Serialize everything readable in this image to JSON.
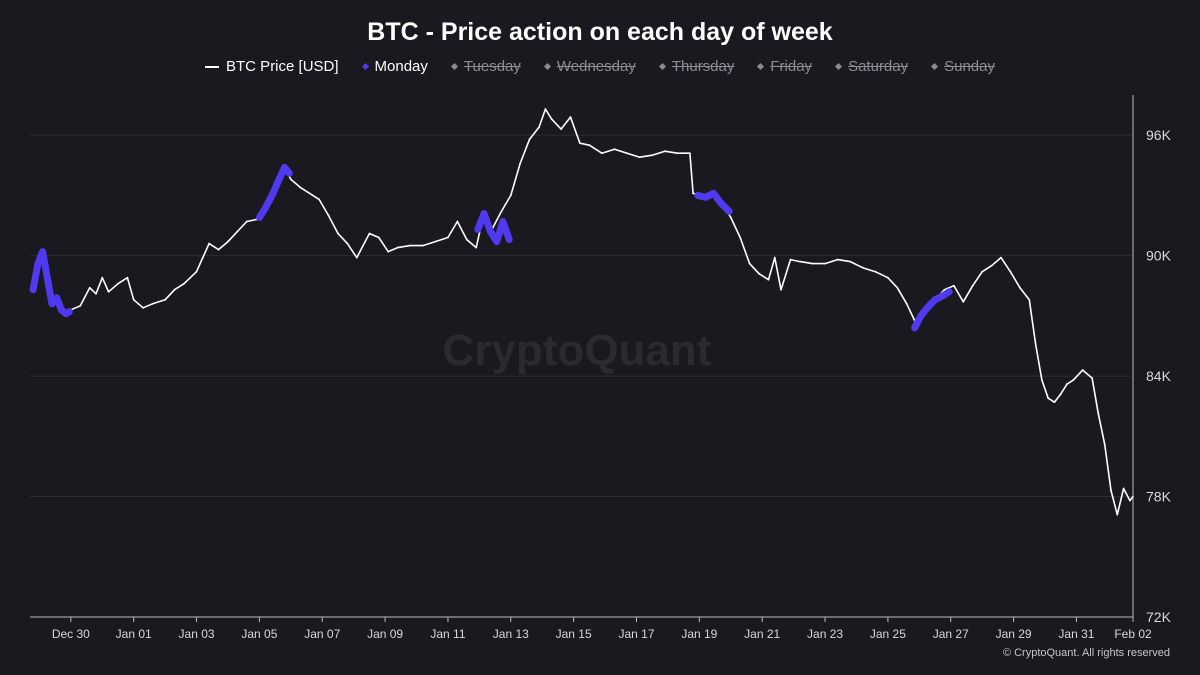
{
  "title": "BTC - Price action on each day of week",
  "legend": [
    {
      "label": "BTC Price [USD]",
      "kind": "line",
      "state": "on",
      "color": "#ffffff"
    },
    {
      "label": "Monday",
      "kind": "dot",
      "state": "on",
      "color": "#4f3af0"
    },
    {
      "label": "Tuesday",
      "kind": "dot",
      "state": "off"
    },
    {
      "label": "Wednesday",
      "kind": "dot",
      "state": "off"
    },
    {
      "label": "Thursday",
      "kind": "dot",
      "state": "off"
    },
    {
      "label": "Friday",
      "kind": "dot",
      "state": "off"
    },
    {
      "label": "Saturday",
      "kind": "dot",
      "state": "off"
    },
    {
      "label": "Sunday",
      "kind": "dot",
      "state": "off"
    }
  ],
  "watermark": "CryptoQuant",
  "footer": "© CryptoQuant. All rights reserved",
  "colors": {
    "background": "#1a191f",
    "price_line": "#ffffff",
    "monday": "#4f3af0",
    "grid": "#2e2d34",
    "axis_text": "#d8d7dd",
    "watermark": "#2b2a31"
  },
  "chart_data": {
    "type": "line",
    "xlim": [
      -1.3,
      33.8
    ],
    "ylim": [
      72000,
      98000
    ],
    "y_axis_position": "right",
    "x_tick_labels": [
      {
        "day": 0,
        "label": "Dec 30"
      },
      {
        "day": 2,
        "label": "Jan 01"
      },
      {
        "day": 4,
        "label": "Jan 03"
      },
      {
        "day": 6,
        "label": "Jan 05"
      },
      {
        "day": 8,
        "label": "Jan 07"
      },
      {
        "day": 10,
        "label": "Jan 09"
      },
      {
        "day": 12,
        "label": "Jan 11"
      },
      {
        "day": 14,
        "label": "Jan 13"
      },
      {
        "day": 16,
        "label": "Jan 15"
      },
      {
        "day": 18,
        "label": "Jan 17"
      },
      {
        "day": 20,
        "label": "Jan 19"
      },
      {
        "day": 22,
        "label": "Jan 21"
      },
      {
        "day": 24,
        "label": "Jan 23"
      },
      {
        "day": 26,
        "label": "Jan 25"
      },
      {
        "day": 28,
        "label": "Jan 27"
      },
      {
        "day": 30,
        "label": "Jan 29"
      },
      {
        "day": 32,
        "label": "Jan 31"
      },
      {
        "day": 33.8,
        "label": "Feb 02"
      }
    ],
    "y_ticks": [
      72000,
      78000,
      84000,
      90000,
      96000
    ],
    "y_tick_labels": [
      "72K",
      "78K",
      "84K",
      "90K",
      "96K"
    ],
    "grid": "horizontal",
    "series": [
      {
        "name": "BTC Price [USD]",
        "color": "#ffffff",
        "points": [
          [
            -1.2,
            88300
          ],
          [
            -1.05,
            89600
          ],
          [
            -0.9,
            90200
          ],
          [
            -0.75,
            88900
          ],
          [
            -0.6,
            87600
          ],
          [
            -0.45,
            87900
          ],
          [
            -0.3,
            87300
          ],
          [
            -0.15,
            87100
          ],
          [
            0,
            87300
          ],
          [
            0.3,
            87500
          ],
          [
            0.6,
            88400
          ],
          [
            0.8,
            88100
          ],
          [
            1.0,
            88900
          ],
          [
            1.2,
            88200
          ],
          [
            1.5,
            88600
          ],
          [
            1.8,
            88900
          ],
          [
            2.0,
            87800
          ],
          [
            2.3,
            87400
          ],
          [
            2.6,
            87600
          ],
          [
            3.0,
            87800
          ],
          [
            3.3,
            88300
          ],
          [
            3.6,
            88600
          ],
          [
            4.0,
            89200
          ],
          [
            4.2,
            89900
          ],
          [
            4.4,
            90600
          ],
          [
            4.7,
            90300
          ],
          [
            5.0,
            90700
          ],
          [
            5.3,
            91200
          ],
          [
            5.6,
            91700
          ],
          [
            5.9,
            91800
          ],
          [
            6.2,
            92400
          ],
          [
            6.5,
            93500
          ],
          [
            6.8,
            94400
          ],
          [
            7.0,
            93800
          ],
          [
            7.3,
            93400
          ],
          [
            7.6,
            93100
          ],
          [
            7.9,
            92800
          ],
          [
            8.2,
            92000
          ],
          [
            8.5,
            91100
          ],
          [
            8.8,
            90600
          ],
          [
            9.1,
            89900
          ],
          [
            9.5,
            91100
          ],
          [
            9.8,
            90900
          ],
          [
            10.1,
            90200
          ],
          [
            10.4,
            90400
          ],
          [
            10.8,
            90500
          ],
          [
            11.2,
            90500
          ],
          [
            11.6,
            90700
          ],
          [
            12.0,
            90900
          ],
          [
            12.3,
            91700
          ],
          [
            12.6,
            90800
          ],
          [
            12.9,
            90400
          ],
          [
            13.1,
            91800
          ],
          [
            13.4,
            91300
          ],
          [
            13.7,
            92200
          ],
          [
            14.0,
            93000
          ],
          [
            14.3,
            94600
          ],
          [
            14.6,
            95800
          ],
          [
            14.9,
            96400
          ],
          [
            15.1,
            97300
          ],
          [
            15.3,
            96800
          ],
          [
            15.6,
            96300
          ],
          [
            15.9,
            96900
          ],
          [
            16.2,
            95600
          ],
          [
            16.5,
            95500
          ],
          [
            16.9,
            95100
          ],
          [
            17.3,
            95300
          ],
          [
            17.7,
            95100
          ],
          [
            18.1,
            94900
          ],
          [
            18.5,
            95000
          ],
          [
            18.9,
            95200
          ],
          [
            19.3,
            95100
          ],
          [
            19.7,
            95100
          ],
          [
            19.8,
            93100
          ],
          [
            20.2,
            93000
          ],
          [
            20.6,
            92900
          ],
          [
            21.0,
            91900
          ],
          [
            21.3,
            90900
          ],
          [
            21.6,
            89600
          ],
          [
            21.9,
            89100
          ],
          [
            22.2,
            88800
          ],
          [
            22.4,
            89900
          ],
          [
            22.6,
            88300
          ],
          [
            22.9,
            89800
          ],
          [
            23.2,
            89700
          ],
          [
            23.6,
            89600
          ],
          [
            24.0,
            89600
          ],
          [
            24.4,
            89800
          ],
          [
            24.8,
            89700
          ],
          [
            25.2,
            89400
          ],
          [
            25.6,
            89200
          ],
          [
            26.0,
            88900
          ],
          [
            26.3,
            88400
          ],
          [
            26.6,
            87600
          ],
          [
            26.9,
            86600
          ],
          [
            27.2,
            87300
          ],
          [
            27.5,
            87800
          ],
          [
            27.8,
            88300
          ],
          [
            28.1,
            88500
          ],
          [
            28.4,
            87700
          ],
          [
            28.7,
            88500
          ],
          [
            29.0,
            89200
          ],
          [
            29.3,
            89500
          ],
          [
            29.6,
            89900
          ],
          [
            29.9,
            89200
          ],
          [
            30.2,
            88400
          ],
          [
            30.5,
            87800
          ],
          [
            30.7,
            85600
          ],
          [
            30.9,
            83800
          ],
          [
            31.1,
            82900
          ],
          [
            31.3,
            82700
          ],
          [
            31.5,
            83100
          ],
          [
            31.7,
            83600
          ],
          [
            31.9,
            83800
          ],
          [
            32.2,
            84300
          ],
          [
            32.5,
            83900
          ],
          [
            32.7,
            82100
          ],
          [
            32.9,
            80600
          ],
          [
            33.1,
            78300
          ],
          [
            33.3,
            77100
          ],
          [
            33.5,
            78400
          ],
          [
            33.7,
            77800
          ],
          [
            33.8,
            78000
          ]
        ]
      },
      {
        "name": "Monday",
        "color": "#4f3af0",
        "segments": [
          [
            [
              -1.2,
              88300
            ],
            [
              -1.05,
              89600
            ],
            [
              -0.9,
              90200
            ],
            [
              -0.75,
              88900
            ],
            [
              -0.6,
              87600
            ],
            [
              -0.45,
              87900
            ],
            [
              -0.3,
              87300
            ],
            [
              -0.15,
              87100
            ],
            [
              -0.05,
              87200
            ]
          ],
          [
            [
              6.0,
              91900
            ],
            [
              6.2,
              92400
            ],
            [
              6.4,
              93000
            ],
            [
              6.6,
              93700
            ],
            [
              6.8,
              94400
            ],
            [
              6.95,
              94100
            ]
          ],
          [
            [
              12.95,
              91300
            ],
            [
              13.15,
              92100
            ],
            [
              13.35,
              91200
            ],
            [
              13.55,
              90700
            ],
            [
              13.75,
              91700
            ],
            [
              13.95,
              90800
            ]
          ],
          [
            [
              19.95,
              93000
            ],
            [
              20.2,
              92900
            ],
            [
              20.45,
              93100
            ],
            [
              20.7,
              92600
            ],
            [
              20.95,
              92200
            ]
          ],
          [
            [
              26.85,
              86400
            ],
            [
              27.05,
              87000
            ],
            [
              27.25,
              87400
            ],
            [
              27.5,
              87800
            ],
            [
              27.75,
              88000
            ],
            [
              27.95,
              88200
            ]
          ]
        ]
      }
    ]
  }
}
